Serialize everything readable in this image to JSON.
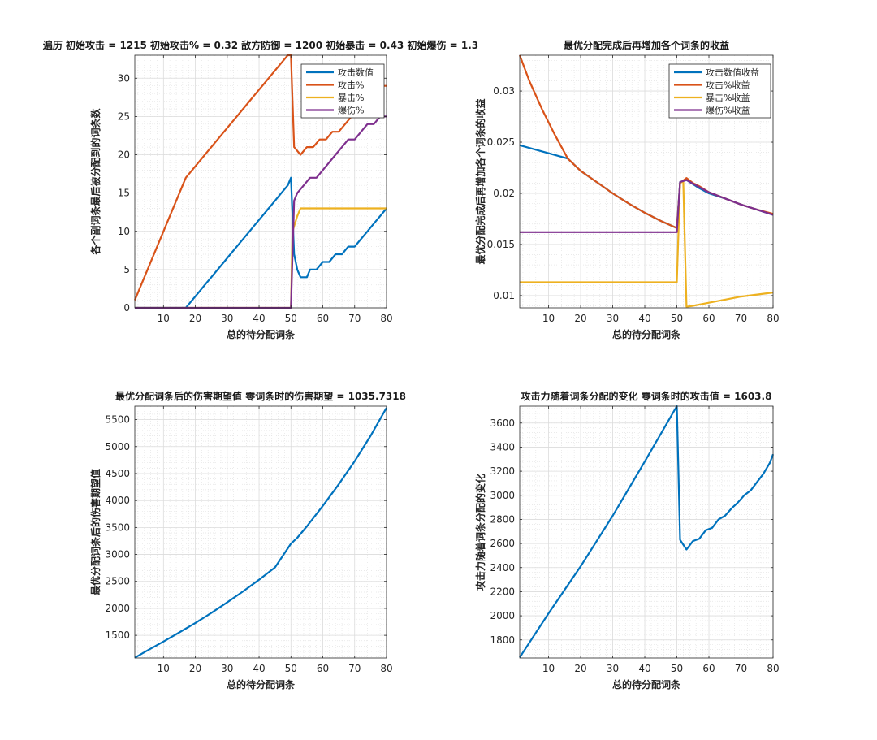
{
  "chart_data": [
    {
      "type": "line",
      "title": "遍历 初始攻击 = 1215 初始攻击% = 0.32 敌方防御 = 1200 初始暴击 = 0.43 初始爆伤 = 1.3",
      "xlabel": "总的待分配词条",
      "ylabel": "各个副词条最后被分配到的词条数",
      "xlim": [
        1,
        80
      ],
      "ylim": [
        0,
        33
      ],
      "xticks": [
        "10",
        "20",
        "30",
        "40",
        "50",
        "60",
        "70",
        "80"
      ],
      "yticks": [
        "0",
        "5",
        "10",
        "15",
        "20",
        "25",
        "30"
      ],
      "xtick_values": [
        10,
        20,
        30,
        40,
        50,
        60,
        70,
        80
      ],
      "ytick_values": [
        0,
        5,
        10,
        15,
        20,
        25,
        30
      ],
      "grid": true,
      "legend": "top-right",
      "series": [
        {
          "name": "攻击数值",
          "color": "#0072BD",
          "points": [
            [
              1,
              0
            ],
            [
              17,
              0
            ],
            [
              19,
              1
            ],
            [
              21,
              2
            ],
            [
              23,
              3
            ],
            [
              25,
              4
            ],
            [
              27,
              5
            ],
            [
              29,
              6
            ],
            [
              31,
              7
            ],
            [
              33,
              8
            ],
            [
              35,
              9
            ],
            [
              37,
              10
            ],
            [
              39,
              11
            ],
            [
              41,
              12
            ],
            [
              43,
              13
            ],
            [
              45,
              14
            ],
            [
              47,
              15
            ],
            [
              49,
              16
            ],
            [
              50,
              17
            ],
            [
              51,
              7
            ],
            [
              52,
              5
            ],
            [
              53,
              4
            ],
            [
              55,
              4
            ],
            [
              56,
              5
            ],
            [
              58,
              5
            ],
            [
              60,
              6
            ],
            [
              62,
              6
            ],
            [
              64,
              7
            ],
            [
              66,
              7
            ],
            [
              68,
              8
            ],
            [
              70,
              8
            ],
            [
              72,
              9
            ],
            [
              74,
              10
            ],
            [
              76,
              11
            ],
            [
              78,
              12
            ],
            [
              80,
              13
            ]
          ]
        },
        {
          "name": "攻击%",
          "color": "#D95319",
          "points": [
            [
              1,
              1
            ],
            [
              17,
              17
            ],
            [
              19,
              18
            ],
            [
              21,
              19
            ],
            [
              23,
              20
            ],
            [
              25,
              21
            ],
            [
              27,
              22
            ],
            [
              29,
              23
            ],
            [
              31,
              24
            ],
            [
              33,
              25
            ],
            [
              35,
              26
            ],
            [
              37,
              27
            ],
            [
              39,
              28
            ],
            [
              41,
              29
            ],
            [
              43,
              30
            ],
            [
              45,
              31
            ],
            [
              47,
              32
            ],
            [
              49,
              33
            ],
            [
              50,
              33
            ],
            [
              51,
              21
            ],
            [
              53,
              20
            ],
            [
              55,
              21
            ],
            [
              57,
              21
            ],
            [
              59,
              22
            ],
            [
              61,
              22
            ],
            [
              63,
              23
            ],
            [
              65,
              23
            ],
            [
              67,
              24
            ],
            [
              69,
              25
            ],
            [
              71,
              26
            ],
            [
              73,
              27
            ],
            [
              75,
              28
            ],
            [
              77,
              29
            ],
            [
              80,
              29
            ]
          ]
        },
        {
          "name": "暴击%",
          "color": "#EDB120",
          "points": [
            [
              1,
              0
            ],
            [
              50,
              0
            ],
            [
              50.5,
              10
            ],
            [
              52,
              12
            ],
            [
              53,
              13
            ],
            [
              80,
              13
            ]
          ]
        },
        {
          "name": "爆伤%",
          "color": "#7E2F8E",
          "points": [
            [
              1,
              0
            ],
            [
              50,
              0
            ],
            [
              51,
              14
            ],
            [
              52,
              15
            ],
            [
              54,
              16
            ],
            [
              56,
              17
            ],
            [
              58,
              17
            ],
            [
              60,
              18
            ],
            [
              62,
              19
            ],
            [
              64,
              20
            ],
            [
              66,
              21
            ],
            [
              68,
              22
            ],
            [
              70,
              22
            ],
            [
              72,
              23
            ],
            [
              74,
              24
            ],
            [
              76,
              24
            ],
            [
              78,
              25
            ],
            [
              80,
              25
            ]
          ]
        }
      ]
    },
    {
      "type": "line",
      "title": "最优分配完成后再增加各个词条的收益",
      "xlabel": "总的待分配词条",
      "ylabel": "最优分配完成后再增加各个词条的收益",
      "xlim": [
        1,
        80
      ],
      "ylim": [
        0.0088,
        0.0335
      ],
      "xticks": [
        "10",
        "20",
        "30",
        "40",
        "50",
        "60",
        "70",
        "80"
      ],
      "yticks": [
        "0.01",
        "0.015",
        "0.02",
        "0.025",
        "0.03"
      ],
      "xtick_values": [
        10,
        20,
        30,
        40,
        50,
        60,
        70,
        80
      ],
      "ytick_values": [
        0.01,
        0.015,
        0.02,
        0.025,
        0.03
      ],
      "grid": true,
      "legend": "top-right",
      "series": [
        {
          "name": "攻击数值收益",
          "color": "#0072BD",
          "points": [
            [
              1,
              0.0247
            ],
            [
              16,
              0.0234
            ],
            [
              20,
              0.0222
            ],
            [
              25,
              0.0211
            ],
            [
              30,
              0.02
            ],
            [
              35,
              0.019
            ],
            [
              40,
              0.0181
            ],
            [
              45,
              0.0173
            ],
            [
              50,
              0.0166
            ],
            [
              51,
              0.0211
            ],
            [
              53,
              0.0213
            ],
            [
              57,
              0.0205
            ],
            [
              60,
              0.02
            ],
            [
              65,
              0.0195
            ],
            [
              70,
              0.0189
            ],
            [
              75,
              0.0184
            ],
            [
              80,
              0.0179
            ]
          ]
        },
        {
          "name": "攻击%收益",
          "color": "#D95319",
          "points": [
            [
              1,
              0.0335
            ],
            [
              4,
              0.031
            ],
            [
              8,
              0.0282
            ],
            [
              12,
              0.0257
            ],
            [
              16,
              0.0234
            ],
            [
              20,
              0.0222
            ],
            [
              25,
              0.0211
            ],
            [
              30,
              0.02
            ],
            [
              35,
              0.019
            ],
            [
              40,
              0.0181
            ],
            [
              45,
              0.0173
            ],
            [
              50,
              0.0166
            ],
            [
              51,
              0.021
            ],
            [
              53,
              0.0215
            ],
            [
              55,
              0.021
            ],
            [
              57,
              0.0207
            ],
            [
              60,
              0.0201
            ],
            [
              65,
              0.0195
            ],
            [
              70,
              0.0189
            ],
            [
              75,
              0.0184
            ],
            [
              80,
              0.018
            ]
          ]
        },
        {
          "name": "暴击%收益",
          "color": "#EDB120",
          "points": [
            [
              1,
              0.0113
            ],
            [
              50,
              0.0113
            ],
            [
              51,
              0.021
            ],
            [
              52,
              0.0212
            ],
            [
              53,
              0.0089
            ],
            [
              55,
              0.009
            ],
            [
              60,
              0.0093
            ],
            [
              65,
              0.0096
            ],
            [
              70,
              0.0099
            ],
            [
              75,
              0.0101
            ],
            [
              80,
              0.0103
            ]
          ]
        },
        {
          "name": "爆伤%收益",
          "color": "#7E2F8E",
          "points": [
            [
              1,
              0.0162
            ],
            [
              50,
              0.0162
            ],
            [
              51,
              0.0211
            ],
            [
              53,
              0.0213
            ],
            [
              57,
              0.0206
            ],
            [
              60,
              0.0201
            ],
            [
              65,
              0.0195
            ],
            [
              70,
              0.0189
            ],
            [
              75,
              0.0184
            ],
            [
              80,
              0.0179
            ]
          ]
        }
      ]
    },
    {
      "type": "line",
      "title": "最优分配词条后的伤害期望值 零词条时的伤害期望 = 1035.7318",
      "xlabel": "总的待分配词条",
      "ylabel": "最优分配词条后的伤害期望值",
      "xlim": [
        1,
        80
      ],
      "ylim": [
        1080,
        5750
      ],
      "xticks": [
        "10",
        "20",
        "30",
        "40",
        "50",
        "60",
        "70",
        "80"
      ],
      "yticks": [
        "1500",
        "2000",
        "2500",
        "3000",
        "3500",
        "4000",
        "4500",
        "5000",
        "5500"
      ],
      "xtick_values": [
        10,
        20,
        30,
        40,
        50,
        60,
        70,
        80
      ],
      "ytick_values": [
        1500,
        2000,
        2500,
        3000,
        3500,
        4000,
        4500,
        5000,
        5500
      ],
      "grid": true,
      "series": [
        {
          "color": "#0072BD",
          "points": [
            [
              1,
              1085
            ],
            [
              5,
              1220
            ],
            [
              10,
              1385
            ],
            [
              15,
              1555
            ],
            [
              20,
              1730
            ],
            [
              25,
              1915
            ],
            [
              30,
              2110
            ],
            [
              35,
              2315
            ],
            [
              40,
              2530
            ],
            [
              45,
              2760
            ],
            [
              50,
              3200
            ],
            [
              52,
              3310
            ],
            [
              55,
              3520
            ],
            [
              60,
              3900
            ],
            [
              65,
              4300
            ],
            [
              70,
              4730
            ],
            [
              75,
              5200
            ],
            [
              80,
              5720
            ]
          ]
        }
      ]
    },
    {
      "type": "line",
      "title": "攻击力随着词条分配的变化 零词条时的攻击值 = 1603.8",
      "xlabel": "总的待分配词条",
      "ylabel": "攻击力随着词条分配的变化",
      "xlim": [
        1,
        80
      ],
      "ylim": [
        1650,
        3740
      ],
      "xticks": [
        "10",
        "20",
        "30",
        "40",
        "50",
        "60",
        "70",
        "80"
      ],
      "yticks": [
        "1800",
        "2000",
        "2200",
        "2400",
        "2600",
        "2800",
        "3000",
        "3200",
        "3400",
        "3600"
      ],
      "xtick_values": [
        10,
        20,
        30,
        40,
        50,
        60,
        70,
        80
      ],
      "ytick_values": [
        1800,
        2000,
        2200,
        2400,
        2600,
        2800,
        3000,
        3200,
        3400,
        3600
      ],
      "grid": true,
      "series": [
        {
          "color": "#0072BD",
          "points": [
            [
              1,
              1655
            ],
            [
              10,
              2020
            ],
            [
              20,
              2410
            ],
            [
              30,
              2830
            ],
            [
              40,
              3280
            ],
            [
              50,
              3740
            ],
            [
              51,
              2630
            ],
            [
              53,
              2550
            ],
            [
              55,
              2620
            ],
            [
              57,
              2640
            ],
            [
              59,
              2710
            ],
            [
              61,
              2730
            ],
            [
              63,
              2800
            ],
            [
              65,
              2830
            ],
            [
              67,
              2890
            ],
            [
              69,
              2940
            ],
            [
              71,
              3000
            ],
            [
              73,
              3040
            ],
            [
              75,
              3110
            ],
            [
              77,
              3180
            ],
            [
              79,
              3270
            ],
            [
              80,
              3340
            ]
          ]
        }
      ]
    }
  ]
}
